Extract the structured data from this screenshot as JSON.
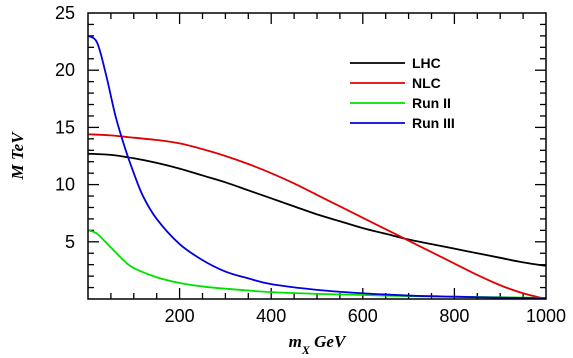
{
  "chart_data": {
    "type": "line",
    "xlabel": "m_X GeV",
    "ylabel": "M TeV",
    "xlim": [
      0,
      1000
    ],
    "ylim": [
      0,
      25
    ],
    "x_ticks": [
      200,
      400,
      600,
      800,
      1000
    ],
    "y_ticks": [
      5,
      10,
      15,
      20,
      25
    ],
    "grid": false,
    "legend_position": "top-right",
    "series": [
      {
        "name": "LHC",
        "color": "#000000",
        "x": [
          0,
          50,
          100,
          150,
          200,
          250,
          300,
          350,
          400,
          450,
          500,
          550,
          600,
          650,
          700,
          750,
          800,
          850,
          900,
          950,
          1000
        ],
        "y": [
          12.7,
          12.6,
          12.3,
          11.9,
          11.4,
          10.8,
          10.2,
          9.5,
          8.8,
          8.1,
          7.4,
          6.8,
          6.2,
          5.7,
          5.2,
          4.8,
          4.4,
          4.0,
          3.6,
          3.2,
          2.9
        ]
      },
      {
        "name": "NLC",
        "color": "#e00000",
        "x": [
          0,
          50,
          100,
          150,
          200,
          250,
          300,
          350,
          400,
          450,
          500,
          550,
          600,
          650,
          700,
          750,
          800,
          850,
          900,
          950,
          1000
        ],
        "y": [
          14.4,
          14.3,
          14.1,
          13.9,
          13.6,
          13.1,
          12.5,
          11.8,
          11.0,
          10.1,
          9.1,
          8.1,
          7.1,
          6.1,
          5.1,
          4.1,
          3.1,
          2.1,
          1.2,
          0.5,
          0.0
        ]
      },
      {
        "name": "Run II",
        "color": "#00e000",
        "x": [
          0,
          20,
          50,
          80,
          100,
          150,
          200,
          250,
          300,
          400,
          500,
          600,
          700,
          800,
          900,
          1000
        ],
        "y": [
          6.0,
          5.7,
          4.5,
          3.3,
          2.7,
          1.9,
          1.4,
          1.1,
          0.9,
          0.6,
          0.45,
          0.35,
          0.25,
          0.2,
          0.15,
          0.1
        ]
      },
      {
        "name": "Run III",
        "color": "#0000e0",
        "x": [
          0,
          20,
          40,
          60,
          80,
          100,
          120,
          150,
          200,
          250,
          300,
          350,
          400,
          500,
          600,
          700,
          800,
          900,
          1000
        ],
        "y": [
          23.0,
          22.4,
          19.5,
          16.0,
          13.3,
          11.0,
          9.0,
          7.0,
          4.8,
          3.4,
          2.4,
          1.8,
          1.3,
          0.8,
          0.5,
          0.3,
          0.2,
          0.12,
          0.05
        ]
      }
    ]
  }
}
